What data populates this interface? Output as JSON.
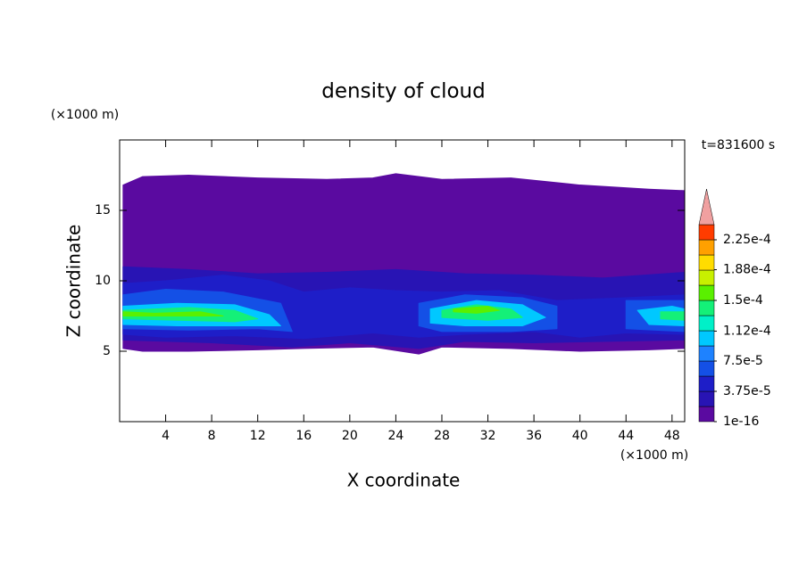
{
  "chart_data": {
    "type": "contour",
    "title": "density of cloud",
    "x_label": "X coordinate",
    "y_label": "Z coordinate",
    "x_unit": "(×1000 m)",
    "y_unit": "(×1000 m)",
    "annotation": "t=831600 s",
    "xlim": [
      0,
      49.1
    ],
    "ylim": [
      0,
      20
    ],
    "xticks": [
      4,
      8,
      12,
      16,
      20,
      24,
      28,
      32,
      36,
      40,
      44,
      48
    ],
    "yticks": [
      5,
      10,
      15
    ],
    "colorbar": {
      "clim": [
        0,
        0.00024375
      ],
      "colors": [
        "#5a0aa0",
        "#2814b4",
        "#1e1ec8",
        "#1450e6",
        "#1e82ff",
        "#00c8ff",
        "#00f0c8",
        "#14f078",
        "#5af000",
        "#c8f000",
        "#ffdc00",
        "#ffa000",
        "#ff3c00"
      ],
      "extend_color": "#f0a0a0",
      "ticks": [
        {
          "value": 1e-16,
          "label": "1e-16"
        },
        {
          "value": 3.75e-05,
          "label": "3.75e-5"
        },
        {
          "value": 7.5e-05,
          "label": "7.5e-5"
        },
        {
          "value": 0.000112,
          "label": "1.12e-4"
        },
        {
          "value": 0.00015,
          "label": "1.5e-4"
        },
        {
          "value": 0.000188,
          "label": "1.88e-4"
        },
        {
          "value": 0.000225,
          "label": "2.25e-4"
        }
      ]
    },
    "regions": [
      {
        "value": 1e-16,
        "x": [
          0.3,
          2,
          6,
          12,
          18,
          22,
          24,
          28,
          34,
          40,
          46,
          49.1,
          49.1,
          46,
          40,
          34,
          28,
          26,
          22,
          16,
          12,
          6,
          2,
          0.3
        ],
        "z": [
          16.8,
          17.4,
          17.5,
          17.3,
          17.2,
          17.3,
          17.6,
          17.2,
          17.3,
          16.8,
          16.5,
          16.4,
          5.2,
          5.1,
          5.0,
          5.2,
          5.3,
          4.8,
          5.3,
          5.2,
          5.1,
          5.0,
          5.0,
          5.2
        ]
      },
      {
        "value": 1.875e-05,
        "x": [
          0.3,
          6,
          12,
          18,
          24,
          30,
          36,
          42,
          49.1,
          49.1,
          42,
          36,
          30,
          26,
          20,
          15,
          8,
          0.3
        ],
        "z": [
          11,
          10.8,
          10.5,
          10.6,
          10.8,
          10.5,
          10.4,
          10.2,
          10.6,
          5.8,
          5.7,
          5.6,
          5.7,
          5.2,
          5.6,
          5.3,
          5.6,
          5.8
        ]
      },
      {
        "value": 3.75e-05,
        "x": [
          0.3,
          4,
          9,
          13,
          16,
          20,
          24,
          28,
          33,
          38,
          44,
          49.1,
          49.1,
          44,
          40,
          36,
          30,
          26,
          22,
          16,
          10,
          4,
          0.3
        ],
        "z": [
          9.8,
          10,
          10.4,
          10,
          9.2,
          9.5,
          9.3,
          9.2,
          9.3,
          8.6,
          8.8,
          9,
          6.2,
          6.3,
          6,
          6.4,
          6.2,
          6,
          6.3,
          5.9,
          6.1,
          6,
          6.2
        ]
      },
      {
        "value": 5.625e-05,
        "x": [
          0.3,
          4,
          9,
          14,
          15,
          12,
          6,
          0.3
        ],
        "z": [
          9,
          9.4,
          9.2,
          8.4,
          6.4,
          6.6,
          6.5,
          6.6
        ]
      },
      {
        "value": 5.625e-05,
        "x": [
          26,
          30,
          35,
          38,
          38,
          34,
          28,
          26
        ],
        "z": [
          8.4,
          9,
          8.8,
          8.2,
          6.6,
          6.4,
          6.4,
          6.8
        ]
      },
      {
        "value": 5.625e-05,
        "x": [
          44,
          49.1,
          49.1,
          44
        ],
        "z": [
          8.6,
          8.6,
          6.4,
          6.6
        ]
      },
      {
        "value": 9.375e-05,
        "x": [
          0.3,
          5,
          10,
          13,
          14,
          10,
          5,
          0.3
        ],
        "z": [
          8.2,
          8.4,
          8.3,
          7.6,
          6.8,
          6.8,
          6.8,
          6.9
        ]
      },
      {
        "value": 9.375e-05,
        "x": [
          27,
          31,
          35,
          37,
          35,
          30,
          27
        ],
        "z": [
          8,
          8.6,
          8.3,
          7.4,
          6.8,
          6.8,
          7
        ]
      },
      {
        "value": 9.375e-05,
        "x": [
          45,
          48,
          49.1,
          49.1,
          46
        ],
        "z": [
          7.9,
          8.2,
          8,
          6.8,
          6.9
        ]
      },
      {
        "value": 0.00013125,
        "x": [
          0.3,
          6,
          10,
          12,
          10,
          5,
          0.3
        ],
        "z": [
          7.9,
          8.1,
          7.9,
          7.3,
          7.1,
          7.2,
          7.3
        ]
      },
      {
        "value": 0.00013125,
        "x": [
          28,
          31,
          34,
          35,
          32,
          28
        ],
        "z": [
          7.9,
          8.3,
          8,
          7.4,
          7.2,
          7.4
        ]
      },
      {
        "value": 0.00013125,
        "x": [
          47,
          49.1,
          49.1,
          47
        ],
        "z": [
          7.8,
          7.8,
          7.2,
          7.3
        ]
      },
      {
        "value": 0.00015,
        "x": [
          0.3,
          3,
          7,
          9,
          6,
          3,
          0.3
        ],
        "z": [
          7.8,
          7.7,
          7.8,
          7.5,
          7.5,
          7.5,
          7.5
        ]
      },
      {
        "value": 0.00015,
        "x": [
          29,
          32,
          33,
          31,
          29
        ],
        "z": [
          8,
          8.2,
          7.9,
          7.7,
          7.8
        ]
      }
    ]
  }
}
